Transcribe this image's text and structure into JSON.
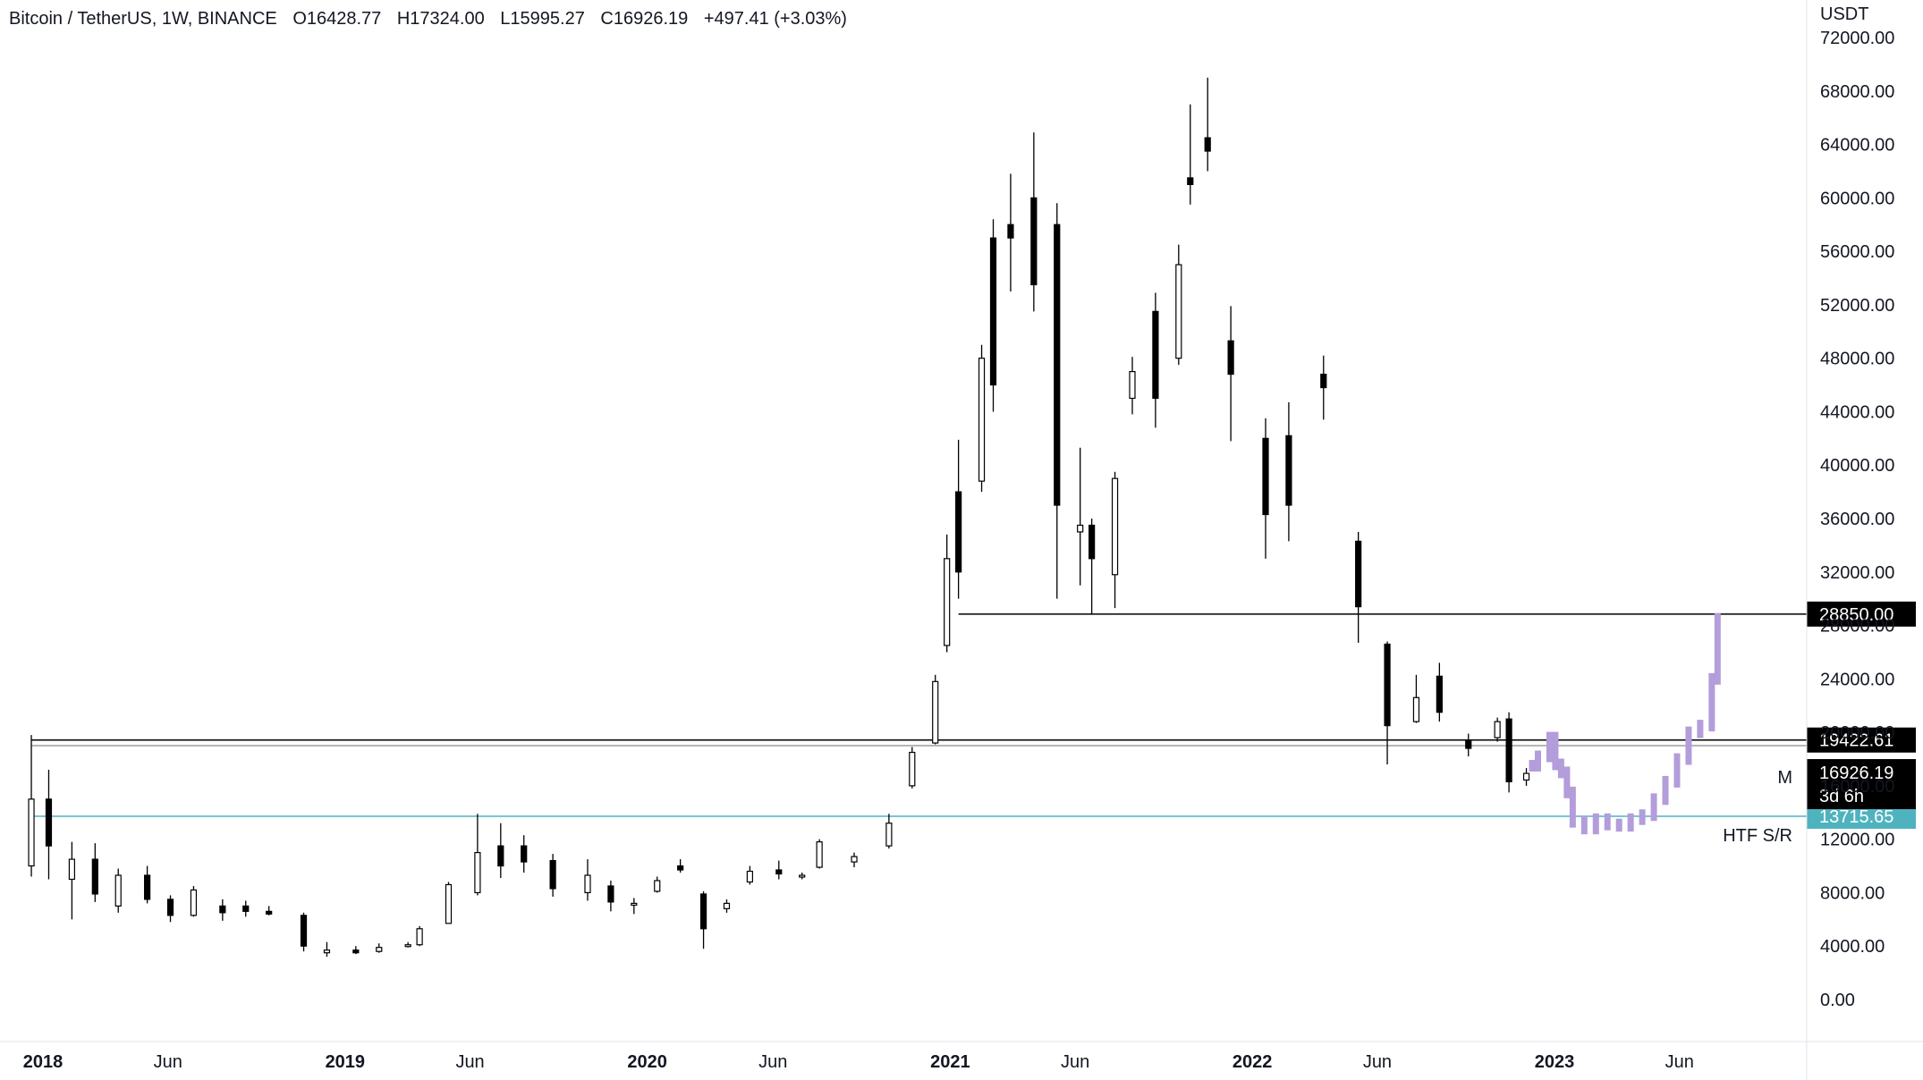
{
  "legend": {
    "symbol": "Bitcoin / TetherUS, 1W, BINANCE",
    "open": "O16428.77",
    "high": "H17324.00",
    "low": "L15995.27",
    "close": "C16926.19",
    "change": "+497.41 (+3.03%)"
  },
  "chart_data": {
    "type": "candlestick",
    "title": "Bitcoin / TetherUS, 1W, BINANCE",
    "ylabel": "USDT",
    "ylim": [
      -2000,
      72000
    ],
    "y_ticks": [
      "72000.00",
      "68000.00",
      "64000.00",
      "60000.00",
      "56000.00",
      "52000.00",
      "48000.00",
      "44000.00",
      "40000.00",
      "36000.00",
      "32000.00",
      "28000.00",
      "24000.00",
      "20000.00",
      "16000.00",
      "12000.00",
      "8000.00",
      "4000.00",
      "0.00"
    ],
    "x_ticks": [
      {
        "label": "2018",
        "date": "2018-01-01",
        "bold": true
      },
      {
        "label": "Jun",
        "date": "2018-06-01",
        "bold": false
      },
      {
        "label": "2019",
        "date": "2019-01-01",
        "bold": true
      },
      {
        "label": "Jun",
        "date": "2019-06-01",
        "bold": false
      },
      {
        "label": "2020",
        "date": "2020-01-01",
        "bold": true
      },
      {
        "label": "Jun",
        "date": "2020-06-01",
        "bold": false
      },
      {
        "label": "2021",
        "date": "2021-01-01",
        "bold": true
      },
      {
        "label": "Jun",
        "date": "2021-06-01",
        "bold": false
      },
      {
        "label": "2022",
        "date": "2022-01-01",
        "bold": true
      },
      {
        "label": "Jun",
        "date": "2022-06-01",
        "bold": false
      },
      {
        "label": "2023",
        "date": "2023-01-01",
        "bold": true
      },
      {
        "label": "Jun",
        "date": "2023-06-01",
        "bold": false
      }
    ],
    "series": [
      {
        "name": "BTCUSDT",
        "kind": "candles",
        "points": [
          {
            "date": "2017-12-18",
            "open": 10000,
            "high": 19800,
            "low": 9200,
            "close": 15000
          },
          {
            "date": "2018-01-08",
            "open": 15000,
            "high": 17200,
            "low": 9000,
            "close": 11500
          },
          {
            "date": "2018-02-05",
            "open": 9000,
            "high": 11800,
            "low": 6000,
            "close": 10500
          },
          {
            "date": "2018-03-05",
            "open": 10500,
            "high": 11700,
            "low": 7300,
            "close": 7900
          },
          {
            "date": "2018-04-02",
            "open": 7000,
            "high": 9800,
            "low": 6500,
            "close": 9300
          },
          {
            "date": "2018-05-07",
            "open": 9300,
            "high": 10000,
            "low": 7200,
            "close": 7500
          },
          {
            "date": "2018-06-04",
            "open": 7500,
            "high": 7800,
            "low": 5800,
            "close": 6300
          },
          {
            "date": "2018-07-02",
            "open": 6300,
            "high": 8500,
            "low": 6200,
            "close": 8200
          },
          {
            "date": "2018-08-06",
            "open": 7000,
            "high": 7500,
            "low": 5900,
            "close": 6500
          },
          {
            "date": "2018-09-03",
            "open": 7000,
            "high": 7400,
            "low": 6200,
            "close": 6600
          },
          {
            "date": "2018-10-01",
            "open": 6600,
            "high": 7000,
            "low": 6300,
            "close": 6400
          },
          {
            "date": "2018-11-12",
            "open": 6300,
            "high": 6500,
            "low": 3600,
            "close": 4000
          },
          {
            "date": "2018-12-10",
            "open": 3500,
            "high": 4300,
            "low": 3200,
            "close": 3700
          },
          {
            "date": "2019-01-14",
            "open": 3700,
            "high": 4000,
            "low": 3400,
            "close": 3500
          },
          {
            "date": "2019-02-11",
            "open": 3600,
            "high": 4200,
            "low": 3500,
            "close": 3900
          },
          {
            "date": "2019-03-18",
            "open": 4000,
            "high": 4300,
            "low": 3900,
            "close": 4100
          },
          {
            "date": "2019-04-01",
            "open": 4100,
            "high": 5500,
            "low": 4000,
            "close": 5300
          },
          {
            "date": "2019-05-06",
            "open": 5700,
            "high": 8800,
            "low": 5700,
            "close": 8600
          },
          {
            "date": "2019-06-10",
            "open": 8000,
            "high": 13900,
            "low": 7800,
            "close": 11000
          },
          {
            "date": "2019-07-08",
            "open": 11500,
            "high": 13200,
            "low": 9100,
            "close": 10000
          },
          {
            "date": "2019-08-05",
            "open": 11500,
            "high": 12300,
            "low": 9500,
            "close": 10300
          },
          {
            "date": "2019-09-09",
            "open": 10400,
            "high": 10900,
            "low": 7700,
            "close": 8300
          },
          {
            "date": "2019-10-21",
            "open": 8000,
            "high": 10500,
            "low": 7400,
            "close": 9300
          },
          {
            "date": "2019-11-18",
            "open": 8500,
            "high": 8900,
            "low": 6600,
            "close": 7300
          },
          {
            "date": "2019-12-16",
            "open": 7200,
            "high": 7600,
            "low": 6400,
            "close": 7200
          },
          {
            "date": "2020-01-13",
            "open": 8100,
            "high": 9200,
            "low": 8000,
            "close": 8900
          },
          {
            "date": "2020-02-10",
            "open": 10000,
            "high": 10500,
            "low": 9500,
            "close": 9700
          },
          {
            "date": "2020-03-09",
            "open": 7900,
            "high": 8100,
            "low": 3800,
            "close": 5300
          },
          {
            "date": "2020-04-06",
            "open": 6800,
            "high": 7500,
            "low": 6500,
            "close": 7200
          },
          {
            "date": "2020-05-04",
            "open": 8800,
            "high": 10000,
            "low": 8600,
            "close": 9600
          },
          {
            "date": "2020-06-08",
            "open": 9700,
            "high": 10400,
            "low": 9000,
            "close": 9400
          },
          {
            "date": "2020-07-06",
            "open": 9200,
            "high": 9500,
            "low": 9000,
            "close": 9300
          },
          {
            "date": "2020-07-27",
            "open": 9900,
            "high": 12000,
            "low": 9800,
            "close": 11800
          },
          {
            "date": "2020-09-07",
            "open": 10300,
            "high": 11000,
            "low": 9900,
            "close": 10700
          },
          {
            "date": "2020-10-19",
            "open": 11500,
            "high": 13900,
            "low": 11300,
            "close": 13200
          },
          {
            "date": "2020-11-16",
            "open": 16000,
            "high": 18900,
            "low": 15800,
            "close": 18500
          },
          {
            "date": "2020-12-14",
            "open": 19200,
            "high": 24300,
            "low": 19100,
            "close": 23800
          },
          {
            "date": "2020-12-28",
            "open": 26500,
            "high": 34800,
            "low": 26000,
            "close": 33000
          },
          {
            "date": "2021-01-11",
            "open": 38000,
            "high": 41900,
            "low": 30000,
            "close": 32000
          },
          {
            "date": "2021-02-08",
            "open": 38800,
            "high": 49000,
            "low": 38000,
            "close": 48000
          },
          {
            "date": "2021-02-22",
            "open": 57000,
            "high": 58400,
            "low": 44000,
            "close": 46000
          },
          {
            "date": "2021-03-15",
            "open": 58000,
            "high": 61800,
            "low": 53000,
            "close": 57000
          },
          {
            "date": "2021-04-12",
            "open": 60000,
            "high": 64900,
            "low": 51500,
            "close": 53500
          },
          {
            "date": "2021-05-10",
            "open": 58000,
            "high": 59600,
            "low": 30000,
            "close": 37000
          },
          {
            "date": "2021-06-07",
            "open": 35000,
            "high": 41300,
            "low": 31000,
            "close": 35500
          },
          {
            "date": "2021-06-21",
            "open": 35500,
            "high": 36000,
            "low": 28800,
            "close": 33000
          },
          {
            "date": "2021-07-19",
            "open": 31800,
            "high": 39500,
            "low": 29300,
            "close": 39000
          },
          {
            "date": "2021-08-09",
            "open": 45000,
            "high": 48100,
            "low": 43800,
            "close": 47000
          },
          {
            "date": "2021-09-06",
            "open": 51500,
            "high": 52900,
            "low": 42800,
            "close": 45000
          },
          {
            "date": "2021-10-04",
            "open": 48000,
            "high": 56500,
            "low": 47500,
            "close": 55000
          },
          {
            "date": "2021-10-18",
            "open": 61500,
            "high": 67000,
            "low": 59500,
            "close": 61000
          },
          {
            "date": "2021-11-08",
            "open": 64500,
            "high": 69000,
            "low": 62000,
            "close": 63500
          },
          {
            "date": "2021-12-06",
            "open": 49300,
            "high": 51900,
            "low": 41800,
            "close": 46800
          },
          {
            "date": "2022-01-17",
            "open": 42000,
            "high": 43500,
            "low": 33000,
            "close": 36300
          },
          {
            "date": "2022-02-14",
            "open": 42200,
            "high": 44700,
            "low": 34300,
            "close": 37000
          },
          {
            "date": "2022-03-28",
            "open": 46800,
            "high": 48200,
            "low": 43400,
            "close": 45800
          },
          {
            "date": "2022-05-09",
            "open": 34300,
            "high": 35000,
            "low": 26700,
            "close": 29400
          },
          {
            "date": "2022-06-13",
            "open": 26600,
            "high": 26800,
            "low": 17600,
            "close": 20500
          },
          {
            "date": "2022-07-18",
            "open": 20800,
            "high": 24300,
            "low": 20700,
            "close": 22600
          },
          {
            "date": "2022-08-15",
            "open": 24200,
            "high": 25200,
            "low": 20800,
            "close": 21500
          },
          {
            "date": "2022-09-19",
            "open": 19400,
            "high": 19900,
            "low": 18200,
            "close": 18800
          },
          {
            "date": "2022-10-24",
            "open": 19600,
            "high": 21100,
            "low": 19300,
            "close": 20800
          },
          {
            "date": "2022-11-07",
            "open": 21000,
            "high": 21500,
            "low": 15500,
            "close": 16300
          },
          {
            "date": "2022-11-28",
            "open": 16428.77,
            "high": 17324,
            "low": 15995.27,
            "close": 16926.19
          }
        ]
      },
      {
        "name": "",
        "kind": "projection",
        "color": "#b39ddb",
        "points": [
          {
            "date": "2022-12-05",
            "value": 17500
          },
          {
            "date": "2022-12-12",
            "value": 18200
          },
          {
            "date": "2022-12-26",
            "value": 19600
          },
          {
            "date": "2023-01-02",
            "value": 17600
          },
          {
            "date": "2023-01-09",
            "value": 17000
          },
          {
            "date": "2023-01-16",
            "value": 15500
          },
          {
            "date": "2023-01-23",
            "value": 13300
          },
          {
            "date": "2023-02-06",
            "value": 12800
          },
          {
            "date": "2023-02-20",
            "value": 13500
          },
          {
            "date": "2023-03-06",
            "value": 13100
          },
          {
            "date": "2023-03-20",
            "value": 13000
          },
          {
            "date": "2023-04-03",
            "value": 13500
          },
          {
            "date": "2023-04-17",
            "value": 13800
          },
          {
            "date": "2023-05-01",
            "value": 15000
          },
          {
            "date": "2023-05-15",
            "value": 16300
          },
          {
            "date": "2023-05-29",
            "value": 18000
          },
          {
            "date": "2023-06-12",
            "value": 20000
          },
          {
            "date": "2023-06-26",
            "value": 20500
          },
          {
            "date": "2023-07-10",
            "value": 24000
          },
          {
            "date": "2023-07-17",
            "value": 28500
          }
        ]
      }
    ],
    "levels": [
      {
        "name": "",
        "value": 28850,
        "label": "28850.00",
        "color": "#000000",
        "start": "2021-01-11"
      },
      {
        "name": "",
        "value": 19422.61,
        "label": "19422.61",
        "color": "#000000",
        "start": "2017-12-18"
      },
      {
        "name": "M",
        "value": 19000,
        "label": "",
        "color": "#9e9e9e",
        "start": "2017-12-18"
      },
      {
        "name": "HTF S/R",
        "value": 13715.65,
        "label": "13715.65",
        "color": "#4fb3bf",
        "start": "2017-12-18"
      }
    ],
    "last_price": {
      "value": 16926.19,
      "label": "16926.19",
      "countdown": "3d 6h"
    },
    "grid": false,
    "legend_position": "top-left"
  }
}
